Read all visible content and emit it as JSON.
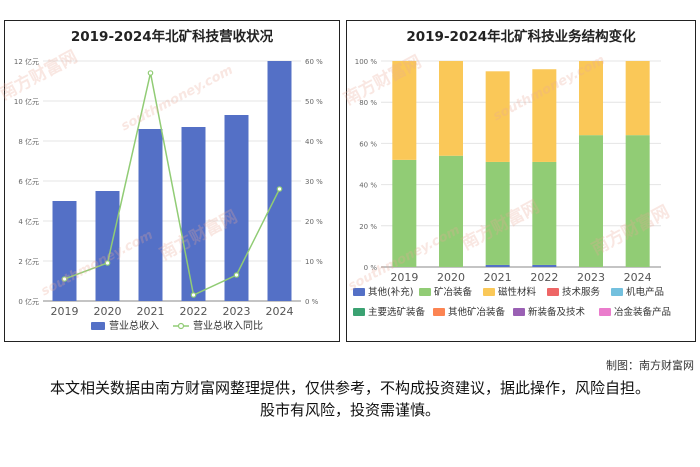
{
  "chart_data": [
    {
      "type": "bar",
      "title": "2019-2024年北矿科技营收状况",
      "categories": [
        "2019",
        "2020",
        "2021",
        "2022",
        "2023",
        "2024"
      ],
      "series": [
        {
          "name": "营业总收入",
          "type": "bar",
          "axis": "left",
          "color": "#5470c6",
          "values": [
            5.0,
            5.5,
            8.6,
            8.7,
            9.3,
            12.0
          ]
        },
        {
          "name": "营业总收入同比",
          "type": "line",
          "axis": "right",
          "color": "#91cc75",
          "values": [
            5.5,
            9.5,
            57.0,
            1.5,
            6.5,
            28.0
          ]
        }
      ],
      "y_left": {
        "min": 0,
        "max": 12,
        "ticks": [
          0,
          2,
          4,
          6,
          8,
          10,
          12
        ],
        "tick_labels": [
          "0 亿元",
          "2 亿元",
          "4 亿元",
          "6 亿元",
          "8 亿元",
          "10 亿元",
          "12 亿元"
        ]
      },
      "y_right": {
        "min": 0,
        "max": 60,
        "ticks": [
          0,
          10,
          20,
          30,
          40,
          50,
          60
        ],
        "tick_labels": [
          "0 %",
          "10 %",
          "20 %",
          "30 %",
          "40 %",
          "50 %",
          "60 %"
        ]
      },
      "grid": true,
      "legend_position": "bottom"
    },
    {
      "type": "bar",
      "stacked": true,
      "title": "2019-2024年北矿科技业务结构变化",
      "categories": [
        "2019",
        "2020",
        "2021",
        "2022",
        "2023",
        "2024"
      ],
      "series": [
        {
          "name": "其他(补充)",
          "color": "#5470c6",
          "values": [
            0,
            0,
            1,
            1,
            0,
            0
          ]
        },
        {
          "name": "矿冶装备",
          "color": "#91cc75",
          "values": [
            52,
            54,
            50,
            50,
            64,
            64
          ]
        },
        {
          "name": "磁性材料",
          "color": "#fac858",
          "values": [
            48,
            46,
            44,
            45,
            36,
            36
          ]
        },
        {
          "name": "技术服务",
          "color": "#ee6666",
          "values": [
            0,
            0,
            0,
            0,
            0,
            0
          ]
        },
        {
          "name": "机电产品",
          "color": "#73c0de",
          "values": [
            0,
            0,
            0,
            0,
            0,
            0
          ]
        },
        {
          "name": "主要选矿装备",
          "color": "#3ba272",
          "values": [
            0,
            0,
            0,
            0,
            0,
            0
          ]
        },
        {
          "name": "其他矿冶装备",
          "color": "#fc8452",
          "values": [
            0,
            0,
            0,
            0,
            0,
            0
          ]
        },
        {
          "name": "新装备及技术",
          "color": "#9a60b4",
          "values": [
            0,
            0,
            0,
            0,
            0,
            0
          ]
        },
        {
          "name": "冶金装备产品",
          "color": "#ea7ccc",
          "values": [
            0,
            0,
            0,
            0,
            0,
            0
          ]
        }
      ],
      "y": {
        "min": 0,
        "max": 100,
        "ticks": [
          0,
          20,
          40,
          60,
          80,
          100
        ],
        "tick_labels": [
          "0 %",
          "20 %",
          "40 %",
          "60 %",
          "80 %",
          "100 %"
        ]
      },
      "grid": true,
      "legend_position": "bottom"
    }
  ],
  "watermark": {
    "brand": "南方财富网",
    "url": "southmoney.com"
  },
  "footer": {
    "credit": "制图：南方财富网",
    "disclaimer": "本文相关数据由南方财富网整理提供，仅供参考，不构成投资建议，据此操作，风险自担。股市有风险，投资需谨慎。"
  }
}
